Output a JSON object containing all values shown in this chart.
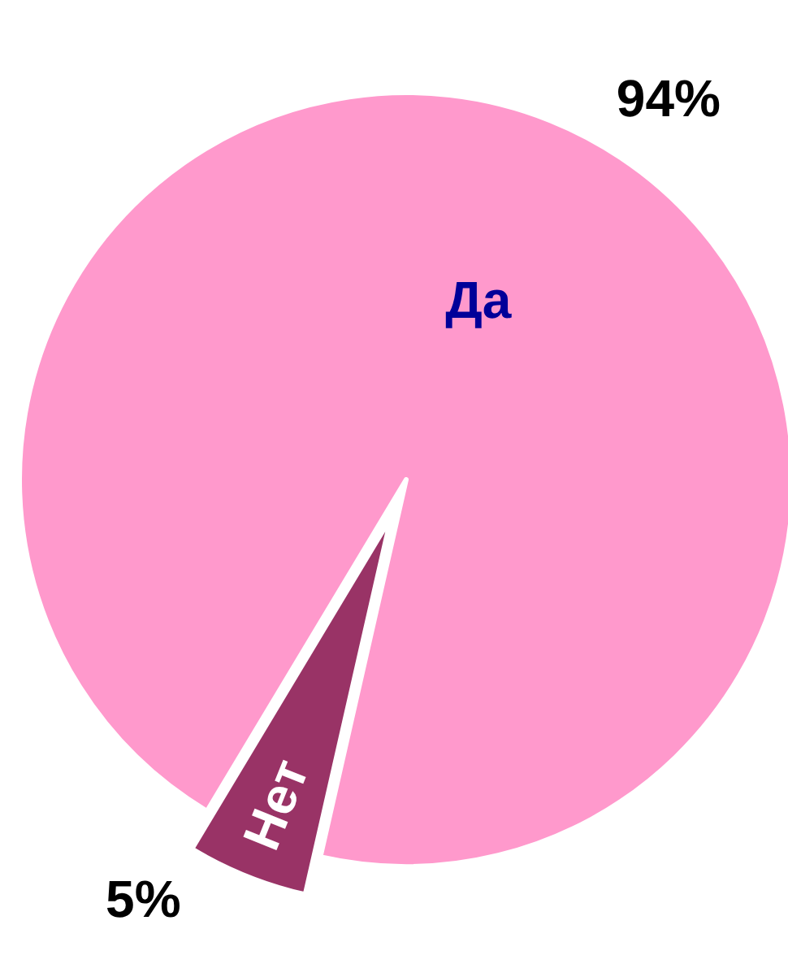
{
  "chart_data": {
    "type": "pie",
    "categories": [
      "Да",
      "Нет"
    ],
    "values": [
      94,
      5
    ],
    "colors": [
      "#ff99cc",
      "#993366"
    ],
    "value_labels": [
      "94%",
      "5%"
    ]
  }
}
